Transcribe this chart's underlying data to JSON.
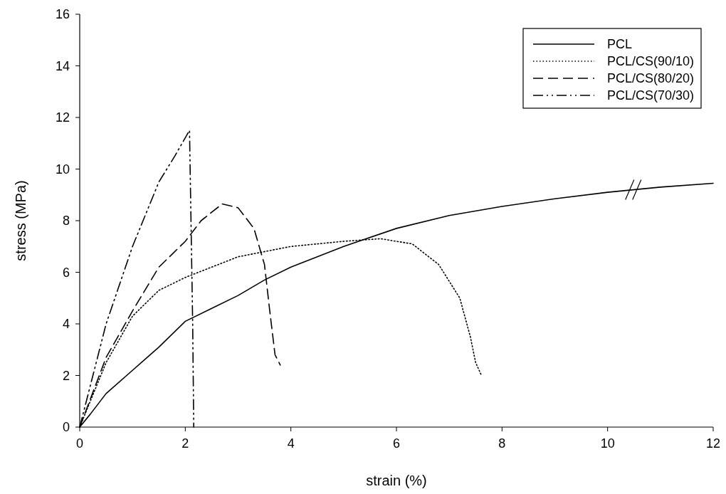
{
  "chart_data": {
    "type": "line",
    "xlabel": "strain (%)",
    "ylabel": "stress (MPa)",
    "xlim": [
      0,
      12
    ],
    "ylim": [
      0,
      16
    ],
    "xticks": [
      0,
      2,
      4,
      6,
      8,
      10,
      12
    ],
    "yticks": [
      0,
      2,
      4,
      6,
      8,
      10,
      12,
      14,
      16
    ],
    "grid": false,
    "legend": "top right",
    "series": [
      {
        "name": "PCL",
        "color": "#000000",
        "line_style": "solid",
        "x": [
          0,
          0.2,
          0.5,
          1,
          1.5,
          2,
          2.5,
          3,
          3.5,
          4,
          5,
          6,
          7,
          8,
          9,
          10,
          11,
          12
        ],
        "values": [
          0,
          0.5,
          1.3,
          2.2,
          3.1,
          4.1,
          4.6,
          5.1,
          5.7,
          6.2,
          7.0,
          7.7,
          8.2,
          8.55,
          8.85,
          9.1,
          9.3,
          9.45
        ]
      },
      {
        "name": "PCL/CS(90/10)",
        "color": "#000000",
        "line_style": "dotted",
        "x": [
          0,
          0.5,
          1,
          1.5,
          2,
          3,
          4,
          5,
          5.7,
          6.3,
          6.8,
          7.2,
          7.4,
          7.5,
          7.6
        ],
        "values": [
          0,
          2.5,
          4.3,
          5.3,
          5.8,
          6.6,
          7.0,
          7.2,
          7.3,
          7.1,
          6.3,
          5.0,
          3.5,
          2.5,
          2.05
        ]
      },
      {
        "name": "PCL/CS(80/20)",
        "color": "#000000",
        "line_style": "dashed",
        "x": [
          0,
          0.5,
          1,
          1.5,
          2,
          2.3,
          2.7,
          3,
          3.3,
          3.5,
          3.6,
          3.7,
          3.8
        ],
        "values": [
          0,
          2.7,
          4.5,
          6.2,
          7.2,
          8.0,
          8.65,
          8.5,
          7.7,
          6.3,
          4.5,
          2.8,
          2.4
        ]
      },
      {
        "name": "PCL/CS(70/30)",
        "color": "#000000",
        "line_style": "dashdot",
        "x": [
          0,
          0.5,
          1,
          1.5,
          1.8,
          2.08,
          2.1,
          2.14,
          2.16
        ],
        "values": [
          0,
          4.0,
          7.0,
          9.5,
          10.5,
          11.5,
          9,
          4,
          0
        ]
      }
    ]
  }
}
